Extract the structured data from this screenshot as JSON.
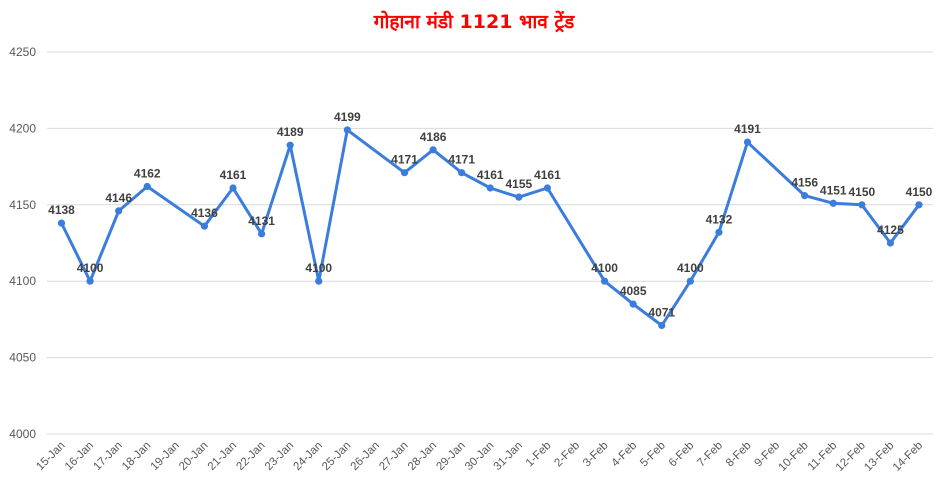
{
  "chart_data": {
    "type": "line",
    "title": "गोहाना मंडी 1121 भाव ट्रेंड",
    "categories": [
      "15-Jan",
      "16-Jan",
      "17-Jan",
      "18-Jan",
      "19-Jan",
      "20-Jan",
      "21-Jan",
      "22-Jan",
      "23-Jan",
      "24-Jan",
      "25-Jan",
      "26-Jan",
      "27-Jan",
      "28-Jan",
      "29-Jan",
      "30-Jan",
      "31-Jan",
      "1-Feb",
      "2-Feb",
      "3-Feb",
      "4-Feb",
      "5-Feb",
      "6-Feb",
      "7-Feb",
      "8-Feb",
      "9-Feb",
      "10-Feb",
      "11-Feb",
      "12-Feb",
      "13-Feb",
      "14-Feb"
    ],
    "series": [
      {
        "values": [
          4138,
          4100,
          4146,
          4162,
          null,
          4136,
          4161,
          4131,
          4189,
          4100,
          4199,
          null,
          4171,
          4186,
          4171,
          4161,
          4155,
          4161,
          null,
          4100,
          4085,
          4071,
          4100,
          4132,
          4191,
          null,
          4156,
          4151,
          4150,
          4125,
          4150
        ],
        "color": "#3b7ddd"
      }
    ],
    "yticks": [
      4000,
      4050,
      4100,
      4150,
      4200,
      4250
    ],
    "ylim": [
      4000,
      4250
    ],
    "grid": true,
    "legend": "none",
    "connect_gaps": true
  }
}
